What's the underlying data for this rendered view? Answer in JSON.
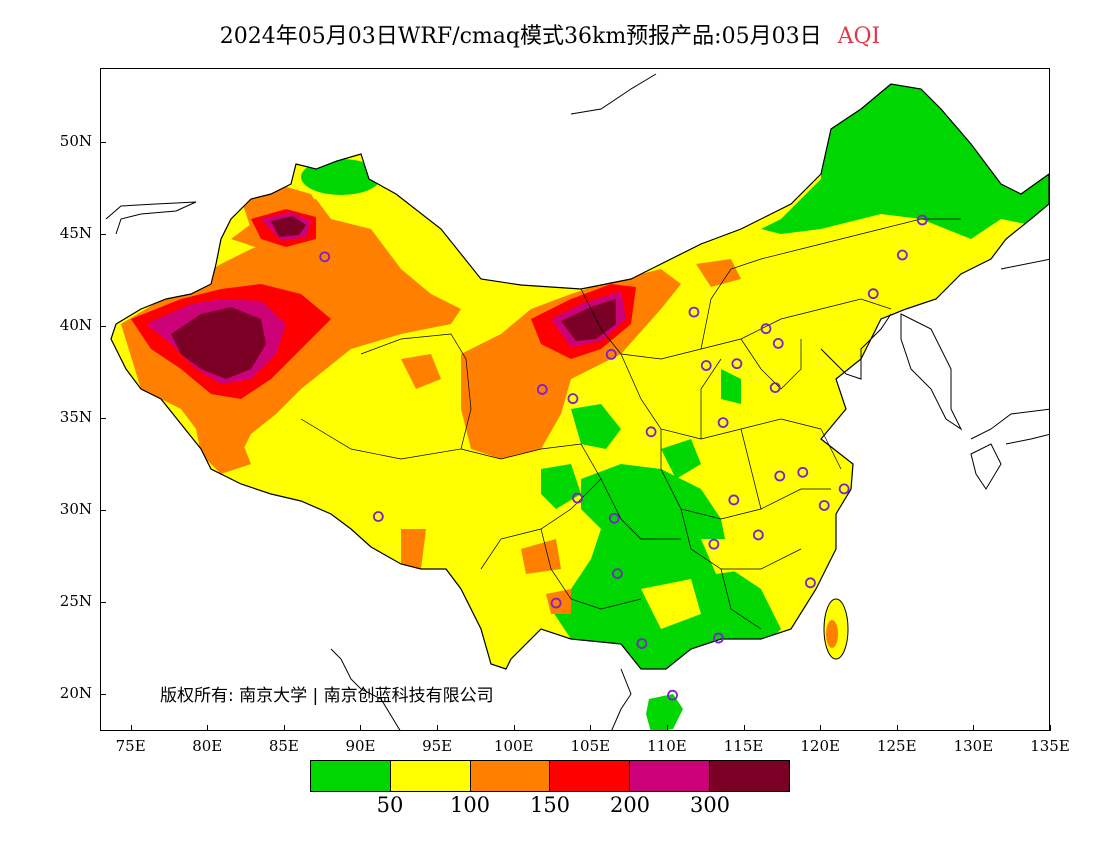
{
  "title": {
    "main": "2024年05月03日WRF/cmaq模式36km预报产品:05月03日",
    "variable": "AQI"
  },
  "axes": {
    "lat_labels": [
      "20N",
      "25N",
      "30N",
      "35N",
      "40N",
      "45N",
      "50N"
    ],
    "lon_labels": [
      "75E",
      "80E",
      "85E",
      "90E",
      "95E",
      "100E",
      "105E",
      "110E",
      "115E",
      "120E",
      "125E",
      "130E",
      "135E"
    ]
  },
  "legend": {
    "colors": [
      "#00d700",
      "#ffff00",
      "#ff8000",
      "#ff0000",
      "#cc0077",
      "#7a0025"
    ],
    "labels": [
      "50",
      "100",
      "150",
      "200",
      "300"
    ]
  },
  "copyright": "版权所有: 南京大学 | 南京创蓝科技有限公司",
  "stations": [
    {
      "lon": 126.6,
      "lat": 45.8
    },
    {
      "lon": 125.3,
      "lat": 43.9
    },
    {
      "lon": 123.4,
      "lat": 41.8
    },
    {
      "lon": 116.4,
      "lat": 39.9
    },
    {
      "lon": 117.2,
      "lat": 39.1
    },
    {
      "lon": 114.5,
      "lat": 38.0
    },
    {
      "lon": 112.5,
      "lat": 37.9
    },
    {
      "lon": 111.7,
      "lat": 40.8
    },
    {
      "lon": 117.0,
      "lat": 36.7
    },
    {
      "lon": 113.6,
      "lat": 34.8
    },
    {
      "lon": 108.9,
      "lat": 34.3
    },
    {
      "lon": 106.3,
      "lat": 38.5
    },
    {
      "lon": 103.8,
      "lat": 36.1
    },
    {
      "lon": 101.8,
      "lat": 36.6
    },
    {
      "lon": 87.6,
      "lat": 43.8
    },
    {
      "lon": 91.1,
      "lat": 29.7
    },
    {
      "lon": 104.1,
      "lat": 30.7
    },
    {
      "lon": 106.5,
      "lat": 29.6
    },
    {
      "lon": 106.7,
      "lat": 26.6
    },
    {
      "lon": 102.7,
      "lat": 25.0
    },
    {
      "lon": 114.3,
      "lat": 30.6
    },
    {
      "lon": 113.0,
      "lat": 28.2
    },
    {
      "lon": 115.9,
      "lat": 28.7
    },
    {
      "lon": 117.3,
      "lat": 31.9
    },
    {
      "lon": 118.8,
      "lat": 32.1
    },
    {
      "lon": 120.2,
      "lat": 30.3
    },
    {
      "lon": 121.5,
      "lat": 31.2
    },
    {
      "lon": 119.3,
      "lat": 26.1
    },
    {
      "lon": 113.3,
      "lat": 23.1
    },
    {
      "lon": 108.3,
      "lat": 22.8
    },
    {
      "lon": 110.3,
      "lat": 20.0
    }
  ]
}
